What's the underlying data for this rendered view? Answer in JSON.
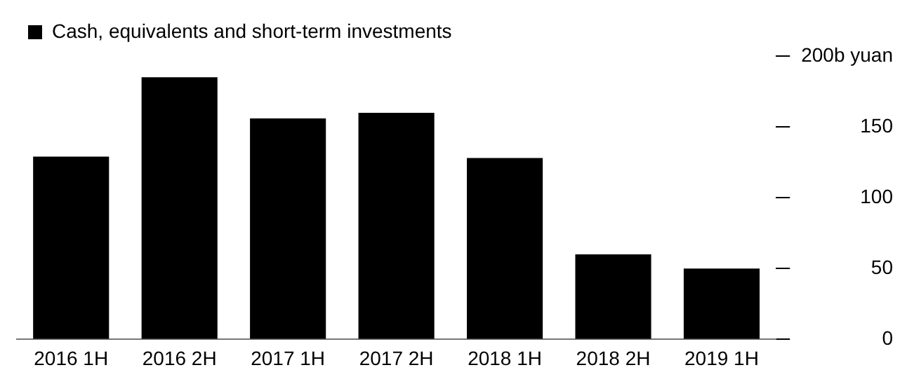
{
  "chart_data": {
    "type": "bar",
    "categories": [
      "2016 1H",
      "2016 2H",
      "2017 1H",
      "2017 2H",
      "2018 1H",
      "2018 2H",
      "2019 1H"
    ],
    "series": [
      {
        "name": "Cash, equivalents and short-term investments",
        "color": "#000000",
        "values": [
          129,
          185,
          156,
          160,
          128,
          60,
          50
        ]
      }
    ],
    "ylim": [
      0,
      200
    ],
    "yticks": [
      0,
      50,
      100,
      150,
      {
        "value": 200,
        "label": "200b yuan"
      }
    ],
    "grid": false,
    "legend": "top left"
  }
}
